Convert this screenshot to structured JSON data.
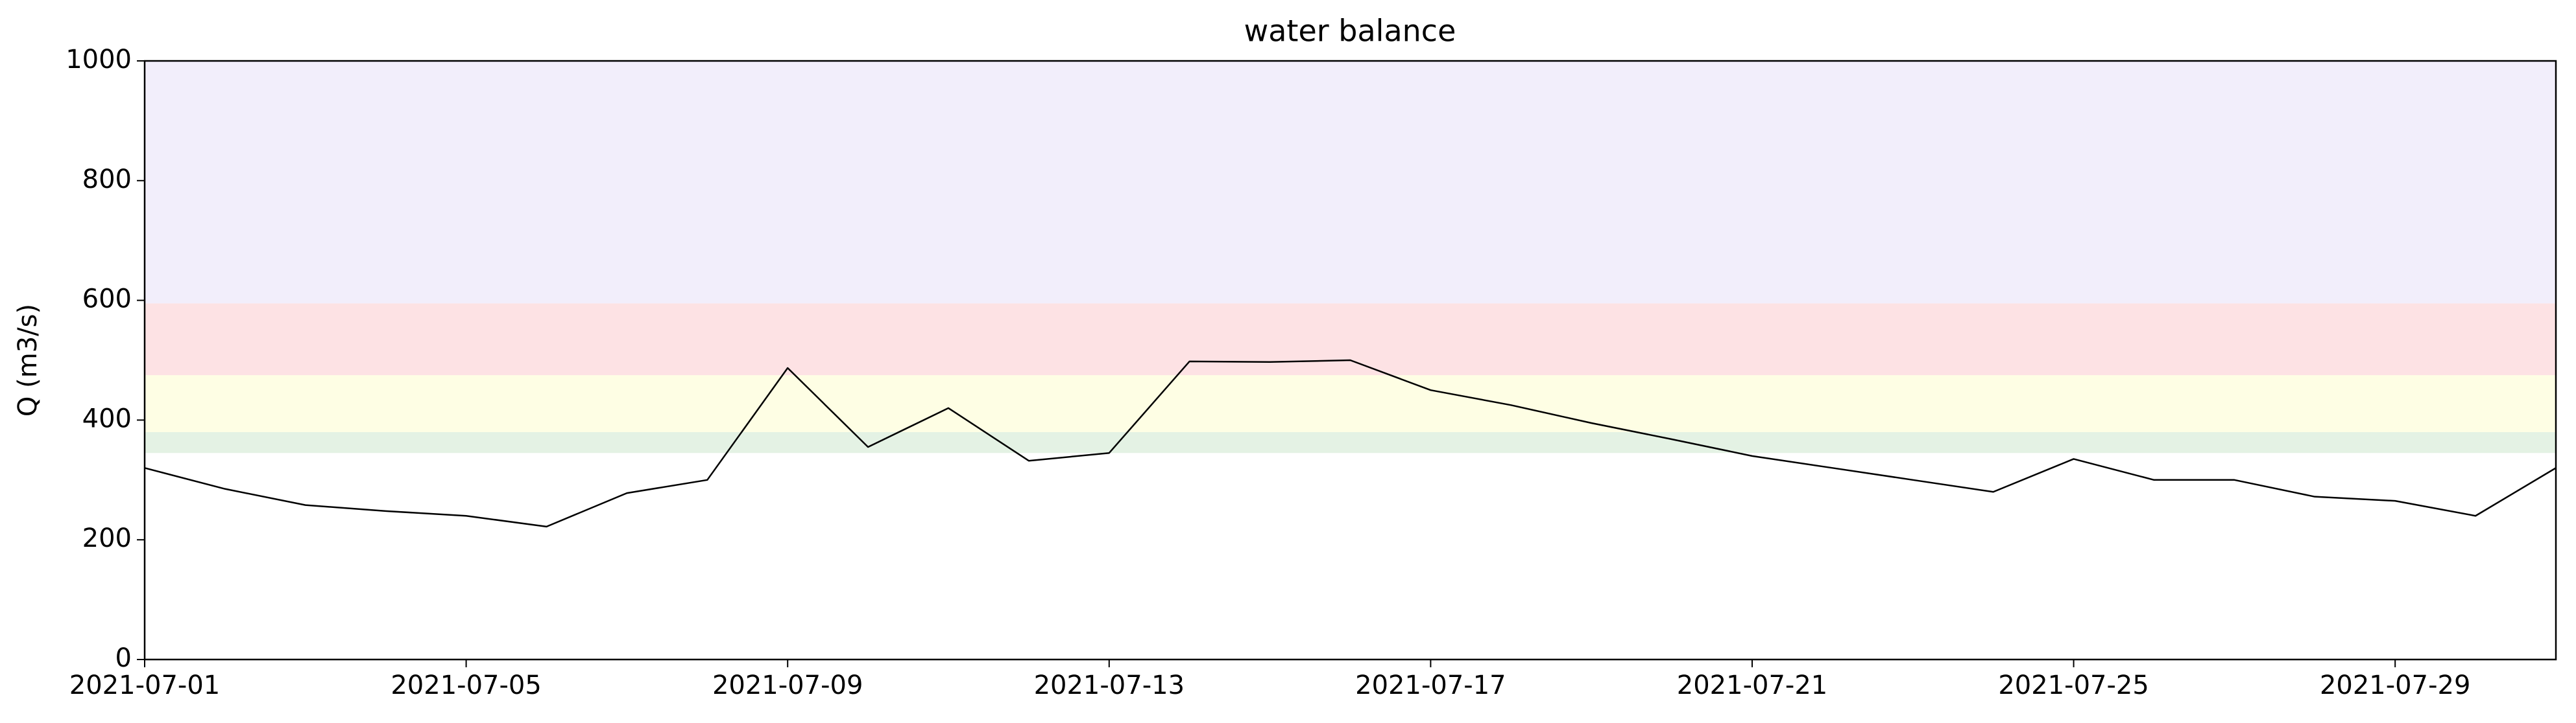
{
  "chart_data": {
    "type": "line",
    "title": "water balance",
    "y_label": "Q (m3/s)",
    "x": [
      "2021-07-01",
      "2021-07-02",
      "2021-07-03",
      "2021-07-04",
      "2021-07-05",
      "2021-07-06",
      "2021-07-07",
      "2021-07-08",
      "2021-07-09",
      "2021-07-10",
      "2021-07-11",
      "2021-07-12",
      "2021-07-13",
      "2021-07-14",
      "2021-07-15",
      "2021-07-16",
      "2021-07-17",
      "2021-07-18",
      "2021-07-19",
      "2021-07-20",
      "2021-07-21",
      "2021-07-22",
      "2021-07-23",
      "2021-07-24",
      "2021-07-25",
      "2021-07-26",
      "2021-07-27",
      "2021-07-28",
      "2021-07-29",
      "2021-07-30",
      "2021-07-31"
    ],
    "series": [
      {
        "color": "#000000",
        "values": [
          320,
          285,
          258,
          248,
          240,
          222,
          278,
          300,
          487,
          355,
          420,
          332,
          345,
          498,
          497,
          500,
          450,
          425,
          395,
          368,
          340,
          320,
          300,
          280,
          335,
          300,
          300,
          272,
          265,
          240,
          320
        ]
      }
    ],
    "bands": [
      {
        "from": 345,
        "to": 380,
        "color": "#e4f2e4"
      },
      {
        "from": 380,
        "to": 475,
        "color": "#fefee4"
      },
      {
        "from": 475,
        "to": 595,
        "color": "#fde2e4"
      },
      {
        "from": 595,
        "to": 1000,
        "color": "#f2eefb"
      }
    ],
    "xlim": [
      "2021-07-01",
      "2021-07-31"
    ],
    "xticks": [
      "2021-07-01",
      "2021-07-05",
      "2021-07-09",
      "2021-07-13",
      "2021-07-17",
      "2021-07-21",
      "2021-07-25",
      "2021-07-29"
    ],
    "ylim": [
      0,
      1000
    ],
    "yticks": [
      0,
      200,
      400,
      600,
      800,
      1000
    ]
  }
}
